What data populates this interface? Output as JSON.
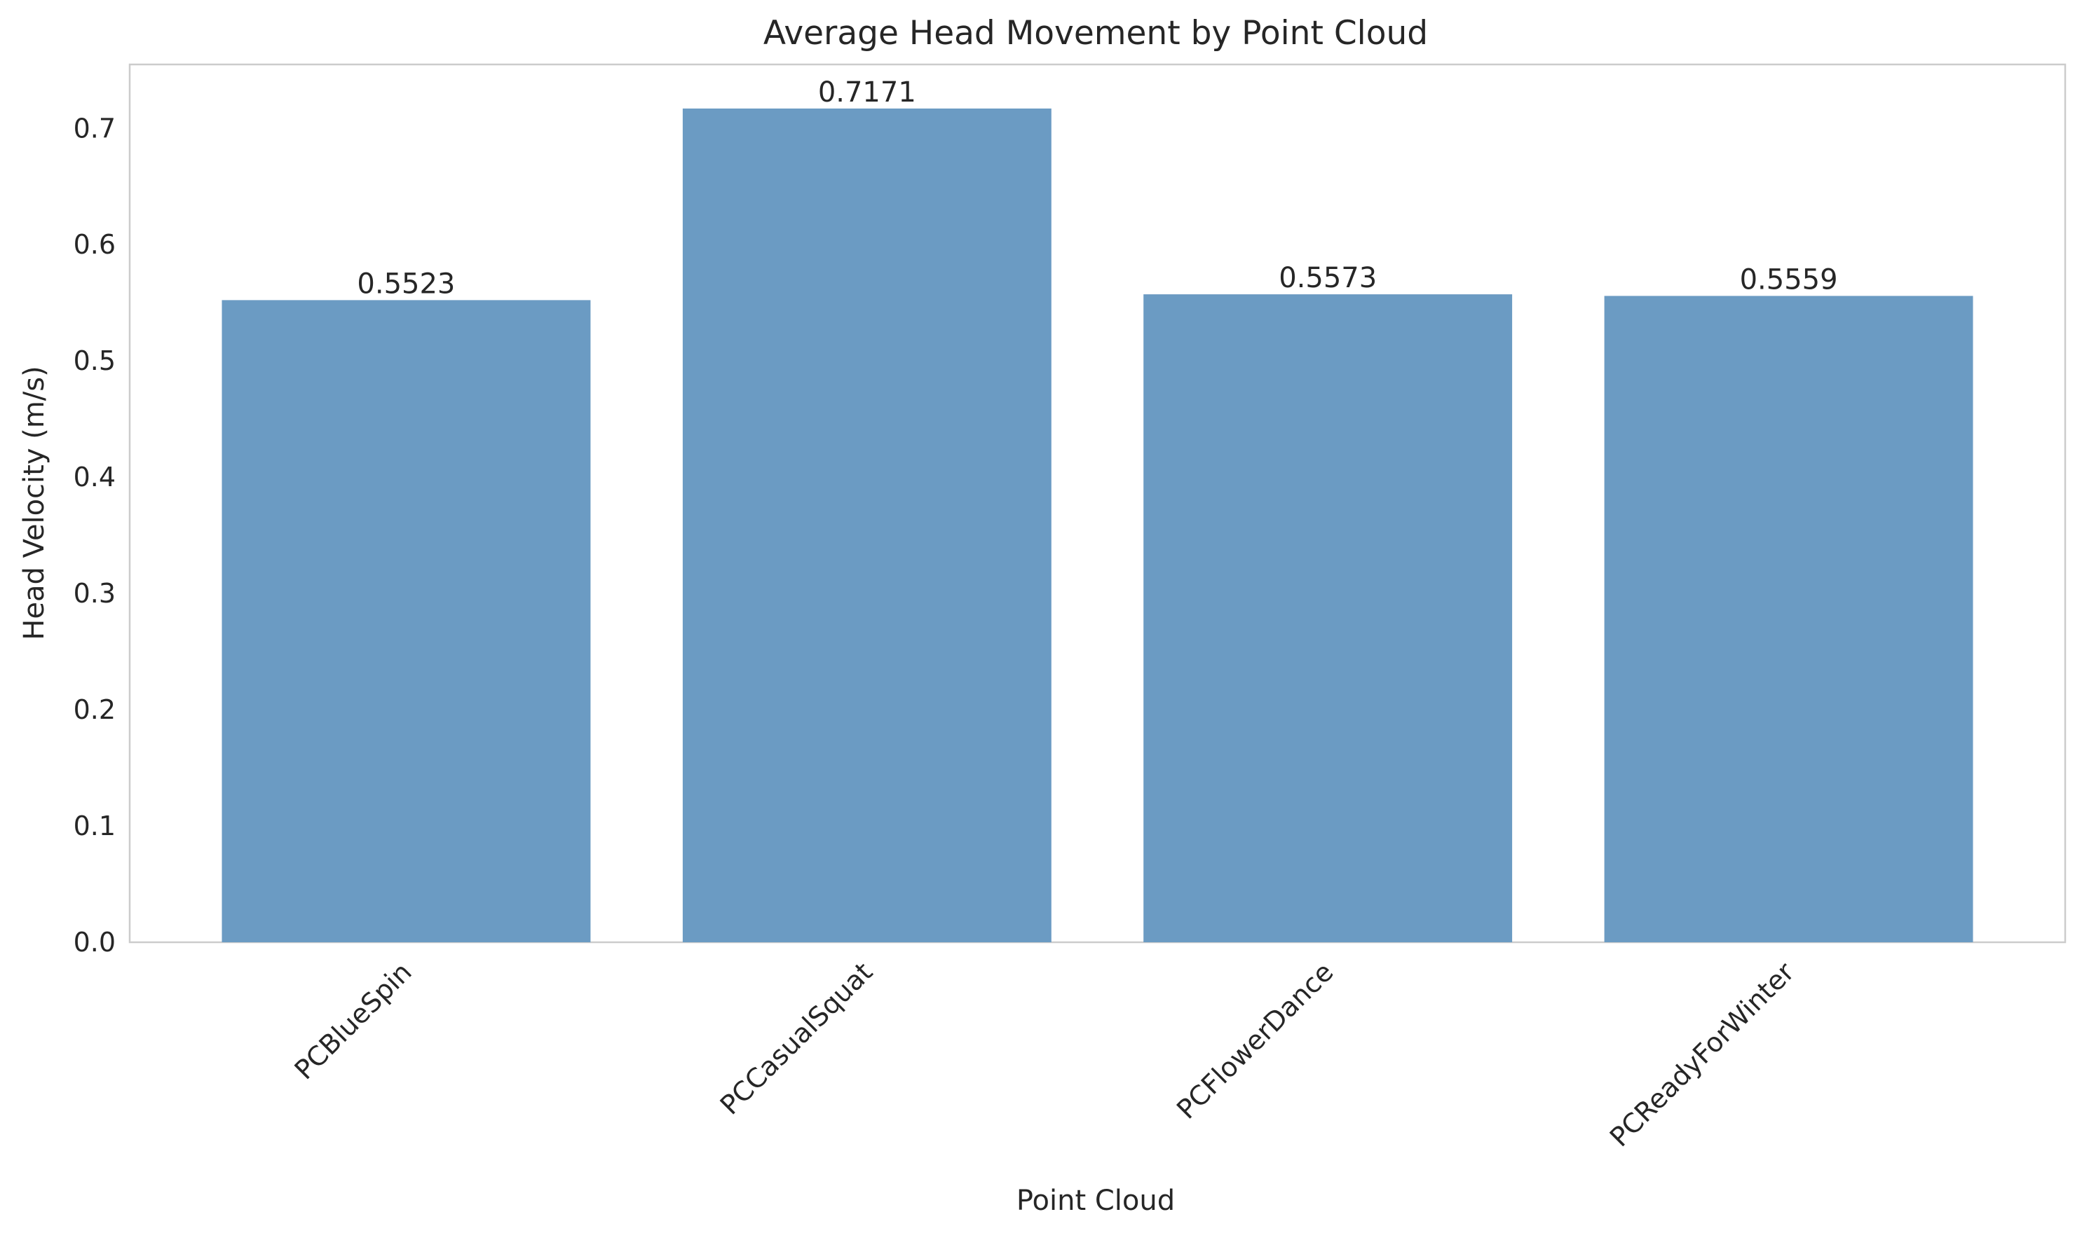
{
  "chart_data": {
    "type": "bar",
    "title": "Average Head Movement by Point Cloud",
    "xlabel": "Point Cloud",
    "ylabel": "Head Velocity (m/s)",
    "categories": [
      "PCBlueSpin",
      "PCCasualSquat",
      "PCFlowerDance",
      "PCReadyForWinter"
    ],
    "values": [
      0.5523,
      0.7171,
      0.5573,
      0.5559
    ],
    "value_labels": [
      "0.5523",
      "0.7171",
      "0.5573",
      "0.5559"
    ],
    "ylim": [
      0,
      0.755
    ],
    "yticks": [
      0.0,
      0.1,
      0.2,
      0.3,
      0.4,
      0.5,
      0.6,
      0.7
    ],
    "ytick_labels": [
      "0.0",
      "0.1",
      "0.2",
      "0.3",
      "0.4",
      "0.5",
      "0.6",
      "0.7"
    ],
    "grid": false,
    "xtick_rotation": "45 degrees",
    "colors": {
      "bar": "#6b9bc3",
      "frame": "#cccccc",
      "text": "#262626"
    }
  }
}
